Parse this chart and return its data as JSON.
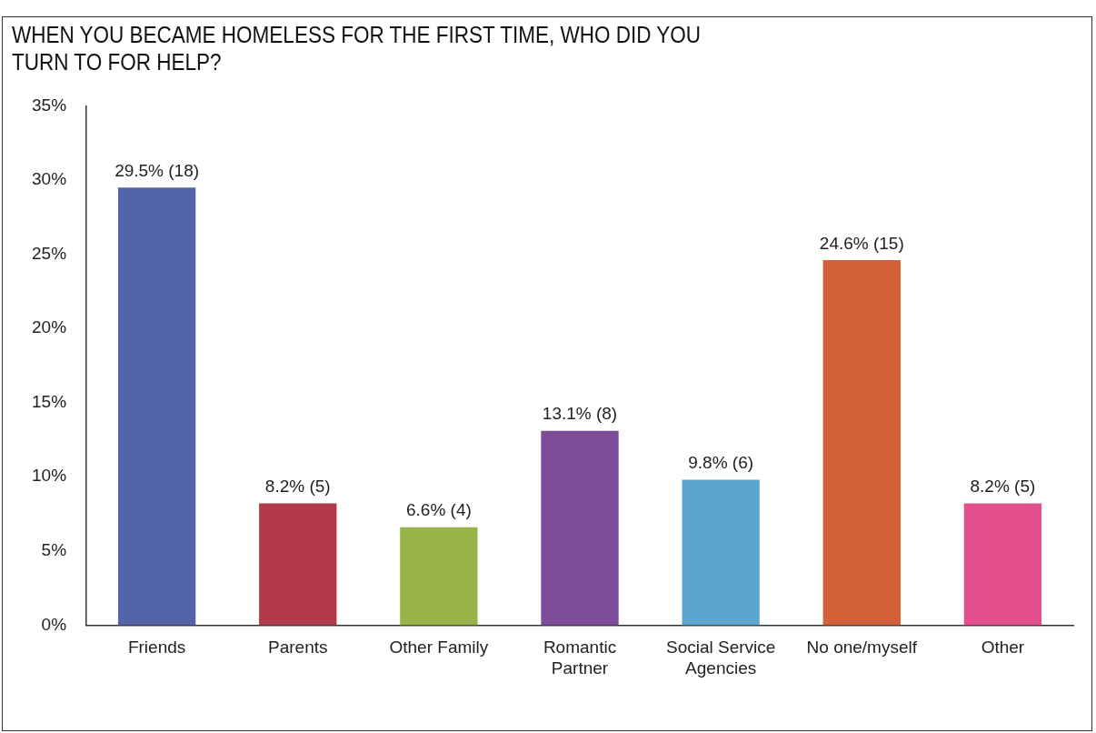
{
  "chart_data": {
    "type": "bar",
    "title": "WHEN YOU BECAME HOMELESS FOR THE FIRST TIME, WHO DID YOU TURN TO FOR HELP?",
    "categories": [
      "Friends",
      "Parents",
      "Other Family",
      "Romantic Partner",
      "Social Service Agencies",
      "No one/myself",
      "Other"
    ],
    "values": [
      29.5,
      8.2,
      6.6,
      13.1,
      9.8,
      24.6,
      8.2
    ],
    "value_labels": [
      "29.5% (18)",
      "8.2% (5)",
      "6.6% (4)",
      "13.1% (8)",
      "9.8% (6)",
      "24.6% (15)",
      "8.2% (5)"
    ],
    "colors": [
      "#5464a8",
      "#b23a4a",
      "#96b448",
      "#7c4c98",
      "#5aa6cc",
      "#d4603a",
      "#e4508e"
    ],
    "ylim": [
      0,
      35
    ],
    "yticks": [
      {
        "value": 0,
        "label": "0%"
      },
      {
        "value": 5,
        "label": "5%"
      },
      {
        "value": 10,
        "label": "10%"
      },
      {
        "value": 15,
        "label": "15%"
      },
      {
        "value": 20,
        "label": "20%"
      },
      {
        "value": 25,
        "label": "25%"
      },
      {
        "value": 30,
        "label": "30%"
      },
      {
        "value": 35,
        "label": "35%"
      }
    ],
    "grid": false,
    "legend": false
  }
}
